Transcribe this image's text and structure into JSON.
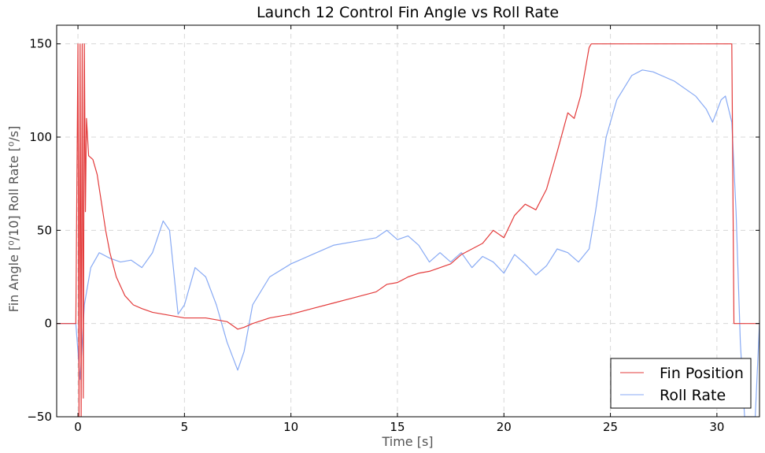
{
  "chart_data": {
    "type": "line",
    "title": "Launch 12 Control Fin Angle vs Roll Rate",
    "xlabel": "Time [s]",
    "ylabel": "Fin Angle [⁰/10] Roll Rate [⁰/s]",
    "xlim": [
      -1,
      32
    ],
    "ylim": [
      -50,
      160
    ],
    "xticks": [
      0,
      5,
      10,
      15,
      20,
      25,
      30
    ],
    "yticks": [
      -50,
      0,
      50,
      100,
      150
    ],
    "grid": true,
    "legend_position": "bottom-right",
    "series": [
      {
        "name": "Fin Position",
        "color": "#e33b3b",
        "points": [
          [
            -1,
            0
          ],
          [
            -0.1,
            0
          ],
          [
            0.0,
            150
          ],
          [
            0.05,
            -50
          ],
          [
            0.1,
            150
          ],
          [
            0.15,
            -50
          ],
          [
            0.2,
            150
          ],
          [
            0.25,
            -40
          ],
          [
            0.3,
            150
          ],
          [
            0.35,
            60
          ],
          [
            0.4,
            110
          ],
          [
            0.5,
            90
          ],
          [
            0.7,
            88
          ],
          [
            0.9,
            80
          ],
          [
            1.1,
            65
          ],
          [
            1.3,
            50
          ],
          [
            1.5,
            38
          ],
          [
            1.8,
            25
          ],
          [
            2.2,
            15
          ],
          [
            2.6,
            10
          ],
          [
            3.0,
            8
          ],
          [
            3.5,
            6
          ],
          [
            4.0,
            5
          ],
          [
            4.5,
            4
          ],
          [
            5.0,
            3
          ],
          [
            5.5,
            3
          ],
          [
            6.0,
            3
          ],
          [
            6.5,
            2
          ],
          [
            7.0,
            1
          ],
          [
            7.5,
            -3
          ],
          [
            7.8,
            -2
          ],
          [
            8.2,
            0
          ],
          [
            9.0,
            3
          ],
          [
            10.0,
            5
          ],
          [
            11.0,
            8
          ],
          [
            12.0,
            11
          ],
          [
            13.0,
            14
          ],
          [
            14.0,
            17
          ],
          [
            14.5,
            21
          ],
          [
            15.0,
            22
          ],
          [
            15.5,
            25
          ],
          [
            16.0,
            27
          ],
          [
            16.5,
            28
          ],
          [
            17.0,
            30
          ],
          [
            17.5,
            32
          ],
          [
            18.0,
            37
          ],
          [
            18.5,
            40
          ],
          [
            19.0,
            43
          ],
          [
            19.5,
            50
          ],
          [
            20.0,
            46
          ],
          [
            20.5,
            58
          ],
          [
            21.0,
            64
          ],
          [
            21.5,
            61
          ],
          [
            22.0,
            72
          ],
          [
            22.5,
            92
          ],
          [
            23.0,
            113
          ],
          [
            23.3,
            110
          ],
          [
            23.6,
            122
          ],
          [
            24.0,
            148
          ],
          [
            24.1,
            150
          ],
          [
            30.7,
            150
          ],
          [
            30.8,
            0
          ],
          [
            32,
            0
          ]
        ]
      },
      {
        "name": "Roll Rate",
        "color": "#88aaf4",
        "points": [
          [
            -1,
            0
          ],
          [
            -0.1,
            0
          ],
          [
            0.1,
            -30
          ],
          [
            0.3,
            10
          ],
          [
            0.6,
            30
          ],
          [
            1.0,
            38
          ],
          [
            1.5,
            35
          ],
          [
            2.0,
            33
          ],
          [
            2.5,
            34
          ],
          [
            3.0,
            30
          ],
          [
            3.5,
            38
          ],
          [
            4.0,
            55
          ],
          [
            4.3,
            50
          ],
          [
            4.7,
            5
          ],
          [
            5.0,
            10
          ],
          [
            5.5,
            30
          ],
          [
            6.0,
            25
          ],
          [
            6.5,
            10
          ],
          [
            7.0,
            -10
          ],
          [
            7.5,
            -25
          ],
          [
            7.8,
            -15
          ],
          [
            8.2,
            10
          ],
          [
            9.0,
            25
          ],
          [
            10.0,
            32
          ],
          [
            11.0,
            37
          ],
          [
            12.0,
            42
          ],
          [
            13.0,
            44
          ],
          [
            14.0,
            46
          ],
          [
            14.5,
            50
          ],
          [
            15.0,
            45
          ],
          [
            15.5,
            47
          ],
          [
            16.0,
            42
          ],
          [
            16.5,
            33
          ],
          [
            17.0,
            38
          ],
          [
            17.5,
            33
          ],
          [
            18.0,
            38
          ],
          [
            18.5,
            30
          ],
          [
            19.0,
            36
          ],
          [
            19.5,
            33
          ],
          [
            20.0,
            27
          ],
          [
            20.5,
            37
          ],
          [
            21.0,
            32
          ],
          [
            21.5,
            26
          ],
          [
            22.0,
            31
          ],
          [
            22.5,
            40
          ],
          [
            23.0,
            38
          ],
          [
            23.5,
            33
          ],
          [
            24.0,
            40
          ],
          [
            24.3,
            60
          ],
          [
            24.8,
            100
          ],
          [
            25.3,
            120
          ],
          [
            26.0,
            133
          ],
          [
            26.5,
            136
          ],
          [
            27.0,
            135
          ],
          [
            28.0,
            130
          ],
          [
            29.0,
            122
          ],
          [
            29.5,
            115
          ],
          [
            29.8,
            108
          ],
          [
            30.2,
            120
          ],
          [
            30.4,
            122
          ],
          [
            30.7,
            108
          ],
          [
            30.9,
            60
          ],
          [
            31.1,
            -10
          ],
          [
            31.3,
            -50
          ],
          [
            31.8,
            -50
          ],
          [
            32.0,
            0
          ]
        ]
      }
    ]
  }
}
